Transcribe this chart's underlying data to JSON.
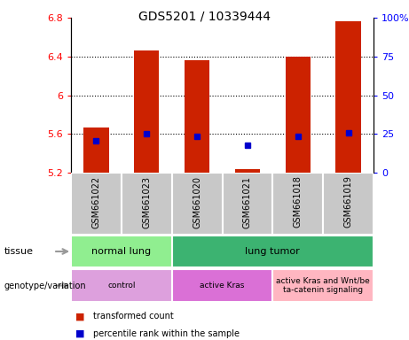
{
  "title": "GDS5201 / 10339444",
  "samples": [
    "GSM661022",
    "GSM661023",
    "GSM661020",
    "GSM661021",
    "GSM661018",
    "GSM661019"
  ],
  "red_values": [
    5.67,
    6.46,
    6.36,
    5.24,
    6.4,
    6.76
  ],
  "blue_values": [
    5.525,
    5.605,
    5.575,
    5.48,
    5.575,
    5.615
  ],
  "ylim_left": [
    5.2,
    6.8
  ],
  "ylim_right": [
    0,
    100
  ],
  "yticks_left": [
    5.2,
    5.6,
    6.0,
    6.4,
    6.8
  ],
  "yticks_right": [
    0,
    25,
    50,
    75,
    100
  ],
  "ytick_labels_left": [
    "5.2",
    "5.6",
    "6",
    "6.4",
    "6.8"
  ],
  "ytick_labels_right": [
    "0",
    "25",
    "50",
    "75",
    "100%"
  ],
  "grid_lines": [
    5.6,
    6.0,
    6.4
  ],
  "tissue_row": [
    {
      "label": "normal lung",
      "cols": [
        0,
        1
      ],
      "color": "#90EE90"
    },
    {
      "label": "lung tumor",
      "cols": [
        2,
        3,
        4,
        5
      ],
      "color": "#3CB371"
    }
  ],
  "genotype_row": [
    {
      "label": "control",
      "cols": [
        0,
        1
      ],
      "color": "#DDA0DD"
    },
    {
      "label": "active Kras",
      "cols": [
        2,
        3
      ],
      "color": "#DA70D6"
    },
    {
      "label": "active Kras and Wnt/be\nta-catenin signaling",
      "cols": [
        4,
        5
      ],
      "color": "#FFB6C1"
    }
  ],
  "bar_color": "#CC2200",
  "dot_color": "#0000CC",
  "bar_width": 0.5,
  "legend_items": [
    {
      "label": "transformed count",
      "color": "#CC2200"
    },
    {
      "label": "percentile rank within the sample",
      "color": "#0000CC"
    }
  ],
  "label_color_tissue": "#808080",
  "label_color_genotype": "#808080",
  "xlabels_bg": "#C8C8C8"
}
